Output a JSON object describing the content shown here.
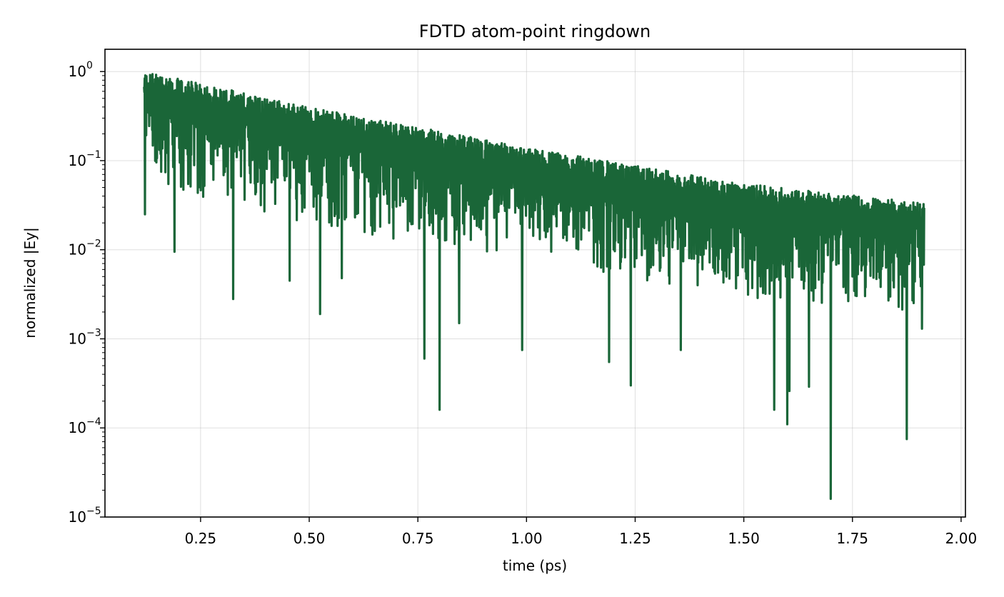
{
  "chart_data": {
    "type": "line",
    "title": "FDTD atom-point ringdown",
    "xlabel": "time (ps)",
    "ylabel": "normalized |Ey|",
    "xlim": [
      0.03,
      2.01
    ],
    "ylim_log10": [
      -5,
      0.25
    ],
    "yscale": "log",
    "grid": true,
    "x_ticks": [
      {
        "value": 0.25,
        "label": "0.25"
      },
      {
        "value": 0.5,
        "label": "0.50"
      },
      {
        "value": 0.75,
        "label": "0.75"
      },
      {
        "value": 1.0,
        "label": "1.00"
      },
      {
        "value": 1.25,
        "label": "1.25"
      },
      {
        "value": 1.5,
        "label": "1.50"
      },
      {
        "value": 1.75,
        "label": "1.75"
      },
      {
        "value": 2.0,
        "label": "2.00"
      }
    ],
    "y_ticks": [
      {
        "exp": 0,
        "base": "10",
        "sup": "0"
      },
      {
        "exp": -1,
        "base": "10",
        "sup": "−1"
      },
      {
        "exp": -2,
        "base": "10",
        "sup": "−2"
      },
      {
        "exp": -3,
        "base": "10",
        "sup": "−3"
      },
      {
        "exp": -4,
        "base": "10",
        "sup": "−4"
      },
      {
        "exp": -5,
        "base": "10",
        "sup": "−5"
      }
    ],
    "series": [
      {
        "color": "#1a6638",
        "x_range": [
          0.12,
          1.915
        ],
        "peak_envelope": [
          [
            0.13,
            0.98
          ],
          [
            0.5,
            0.4
          ],
          [
            1.0,
            0.14
          ],
          [
            1.5,
            0.055
          ],
          [
            1.9,
            0.034
          ]
        ],
        "deep_minima": [
          [
            0.122,
            0.025
          ],
          [
            0.19,
            0.0095
          ],
          [
            0.325,
            0.0028
          ],
          [
            0.455,
            0.0045
          ],
          [
            0.525,
            0.0019
          ],
          [
            0.575,
            0.0048
          ],
          [
            0.765,
            0.0006
          ],
          [
            0.8,
            0.00016
          ],
          [
            0.845,
            0.0015
          ],
          [
            0.99,
            0.00075
          ],
          [
            1.19,
            0.00055
          ],
          [
            1.24,
            0.0003
          ],
          [
            1.355,
            0.00075
          ],
          [
            1.57,
            0.00016
          ],
          [
            1.6,
            0.00011
          ],
          [
            1.605,
            0.00026
          ],
          [
            1.65,
            0.00029
          ],
          [
            1.7,
            1.6e-05
          ],
          [
            1.875,
            7.5e-05
          ],
          [
            1.91,
            0.0013
          ]
        ]
      }
    ]
  }
}
